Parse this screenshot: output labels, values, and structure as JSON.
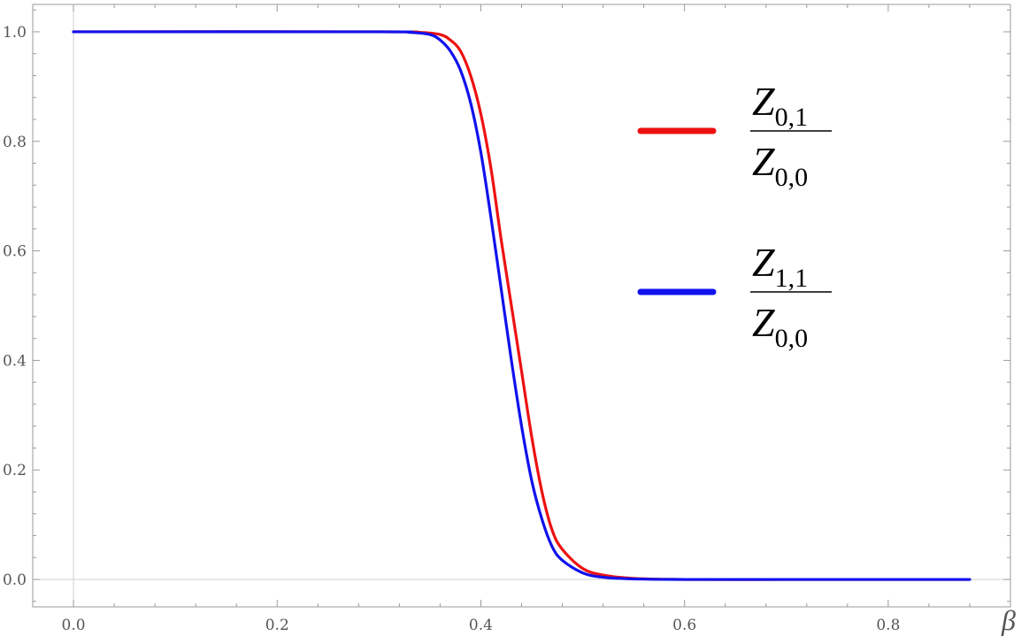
{
  "chart_data": {
    "type": "line",
    "xlabel": "β",
    "ylabel": "",
    "xlim": [
      -0.04,
      0.92
    ],
    "ylim": [
      -0.05,
      1.05
    ],
    "x_ticks": [
      0.0,
      0.2,
      0.4,
      0.6,
      0.8
    ],
    "x_tick_labels": [
      "0.0",
      "0.2",
      "0.4",
      "0.6",
      "0.8"
    ],
    "y_ticks": [
      0.0,
      0.2,
      0.4,
      0.6,
      0.8,
      1.0
    ],
    "y_tick_labels": [
      "0.0",
      "0.2",
      "0.4",
      "0.6",
      "0.8",
      "1.0"
    ],
    "grid": false,
    "frame": true,
    "legend_position": "right",
    "series": [
      {
        "name": "Z_{0,1} / Z_{0,0}",
        "legend": {
          "num_letter": "Z",
          "num_sub": "0,1",
          "den_letter": "Z",
          "den_sub": "0,0"
        },
        "color": "#ee1111",
        "x": [
          0.0,
          0.3,
          0.34,
          0.36,
          0.37,
          0.38,
          0.39,
          0.4,
          0.41,
          0.42,
          0.43,
          0.44,
          0.45,
          0.46,
          0.47,
          0.48,
          0.5,
          0.52,
          0.55,
          0.6,
          0.7,
          0.8,
          0.88
        ],
        "y": [
          1.0,
          1.0,
          0.999,
          0.995,
          0.985,
          0.965,
          0.92,
          0.85,
          0.75,
          0.62,
          0.5,
          0.38,
          0.26,
          0.16,
          0.09,
          0.055,
          0.02,
          0.008,
          0.002,
          0.0,
          0.0,
          0.0,
          0.0
        ]
      },
      {
        "name": "Z_{1,1} / Z_{0,0}",
        "legend": {
          "num_letter": "Z",
          "num_sub": "1,1",
          "den_letter": "Z",
          "den_sub": "0,0"
        },
        "color": "#1111ee",
        "x": [
          0.0,
          0.3,
          0.33,
          0.35,
          0.36,
          0.37,
          0.38,
          0.39,
          0.4,
          0.41,
          0.42,
          0.43,
          0.44,
          0.45,
          0.46,
          0.47,
          0.48,
          0.5,
          0.52,
          0.55,
          0.6,
          0.7,
          0.8,
          0.88
        ],
        "y": [
          1.0,
          1.0,
          0.999,
          0.995,
          0.985,
          0.965,
          0.93,
          0.87,
          0.78,
          0.66,
          0.53,
          0.4,
          0.28,
          0.18,
          0.11,
          0.06,
          0.035,
          0.012,
          0.004,
          0.001,
          0.0,
          0.0,
          0.0,
          0.0
        ]
      }
    ]
  }
}
